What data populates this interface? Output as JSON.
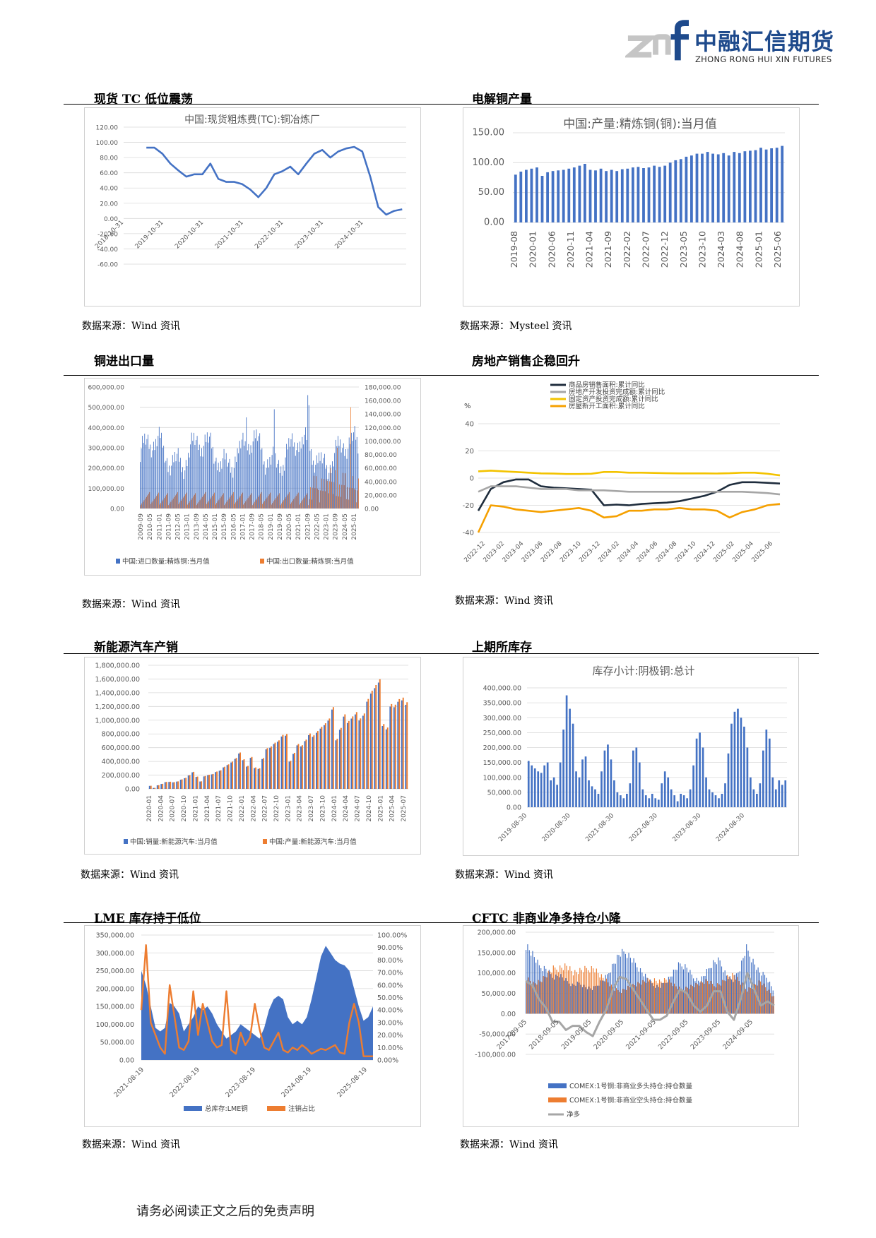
{
  "header": {
    "logo_mark": "znf",
    "brand_cn": "中融汇信期货",
    "brand_en": "ZHONG RONG HUI XIN FUTURES"
  },
  "sections": [
    {
      "title": "现货 TC 低位震荡",
      "source": "数据来源：Wind 资讯"
    },
    {
      "title": "电解铜产量",
      "source": "数据来源：Mysteel 资讯"
    },
    {
      "title": "铜进出口量",
      "source": "数据来源：Wind 资讯"
    },
    {
      "title": "房地产销售企稳回升",
      "source": "数据来源：Wind 资讯"
    },
    {
      "title": "新能源汽车产销",
      "source": "数据来源：Wind 资讯"
    },
    {
      "title": "上期所库存",
      "source": "数据来源：Wind 资讯"
    },
    {
      "title": "LME 库存持于低位",
      "source": "数据来源：Wind 资讯"
    },
    {
      "title": "CFTC 非商业净多持仓小降",
      "source": "数据来源：Wind 资讯"
    }
  ],
  "footer": "请务必阅读正文之后的免责声明",
  "chart_data": [
    {
      "id": "tc",
      "type": "line",
      "title": "中国:现货粗炼费(TC):铜冶炼厂",
      "color": "#4472c4",
      "x_ticks": [
        "2018-10-31",
        "2019-10-31",
        "2020-10-31",
        "2021-10-31",
        "2022-10-31",
        "2023-10-31",
        "2024-10-31"
      ],
      "y_ticks": [
        "120.00",
        "100.00",
        "80.00",
        "60.00",
        "40.00",
        "20.00",
        "0.00",
        "-20.00",
        "-40.00",
        "-60.00"
      ],
      "ylim": [
        -60,
        120
      ],
      "x": [
        2019.4,
        2019.6,
        2019.8,
        2020.0,
        2020.2,
        2020.4,
        2020.6,
        2020.8,
        2021.0,
        2021.2,
        2021.4,
        2021.6,
        2021.8,
        2022.0,
        2022.2,
        2022.4,
        2022.6,
        2022.8,
        2023.0,
        2023.2,
        2023.4,
        2023.6,
        2023.8,
        2024.0,
        2024.2,
        2024.4,
        2024.6,
        2024.8,
        2025.0,
        2025.2,
        2025.4,
        2025.6,
        2025.8
      ],
      "y": [
        93,
        93,
        85,
        72,
        63,
        55,
        58,
        58,
        72,
        52,
        48,
        48,
        45,
        38,
        28,
        40,
        58,
        62,
        68,
        58,
        72,
        85,
        90,
        80,
        88,
        92,
        94,
        88,
        55,
        15,
        5,
        10,
        12
      ]
    },
    {
      "id": "refined_output",
      "type": "bar",
      "title": "中国:产量:精炼铜(铜):当月值",
      "color": "#4472c4",
      "x_ticks": [
        "2019-08",
        "2020-01",
        "2020-06",
        "2020-11",
        "2021-04",
        "2021-09",
        "2022-02",
        "2022-07",
        "2022-12",
        "2023-05",
        "2023-10",
        "2024-03",
        "2024-08",
        "2025-01",
        "2025-06"
      ],
      "y_ticks": [
        "150.00",
        "100.00",
        "50.00",
        "0.00"
      ],
      "ylim": [
        0,
        150
      ],
      "values": [
        80,
        85,
        88,
        90,
        92,
        78,
        84,
        86,
        87,
        88,
        90,
        92,
        95,
        98,
        88,
        87,
        90,
        86,
        88,
        86,
        89,
        90,
        92,
        93,
        91,
        92,
        95,
        93,
        95,
        100,
        104,
        106,
        110,
        112,
        115,
        115,
        118,
        115,
        114,
        116,
        112,
        118,
        116,
        119,
        120,
        121,
        125,
        122,
        124,
        125,
        128
      ]
    },
    {
      "id": "trade",
      "type": "bar",
      "x_ticks": [
        "2009-09",
        "2010-05",
        "2011-01",
        "2011-09",
        "2012-05",
        "2013-01",
        "2013-09",
        "2014-05",
        "2015-01",
        "2015-09",
        "2016-05",
        "2017-01",
        "2017-09",
        "2018-05",
        "2019-01",
        "2019-09",
        "2020-05",
        "2021-01",
        "2021-09",
        "2022-05",
        "2023-01",
        "2023-09",
        "2024-05",
        "2025-01"
      ],
      "y_ticks_left": [
        "600,000.00",
        "500,000.00",
        "400,000.00",
        "300,000.00",
        "200,000.00",
        "100,000.00",
        "0.00"
      ],
      "y_ticks_right": [
        "180,000.00",
        "160,000.00",
        "140,000.00",
        "120,000.00",
        "100,000.00",
        "80,000.00",
        "60,000.00",
        "40,000.00",
        "20,000.00",
        "0.00"
      ],
      "series": [
        {
          "name": "中国:进口数量:精炼铜:当月值",
          "color": "#4472c4",
          "ylim": [
            0,
            600000
          ]
        },
        {
          "name": "中国:出口数量:精炼铜:当月值",
          "color": "#ed7d31",
          "ylim": [
            0,
            180000
          ]
        }
      ]
    },
    {
      "id": "property",
      "type": "line",
      "unit": "%",
      "x_ticks": [
        "2022-12",
        "2023-02",
        "2023-04",
        "2023-06",
        "2023-08",
        "2023-10",
        "2023-12",
        "2024-02",
        "2024-04",
        "2024-06",
        "2024-08",
        "2024-10",
        "2024-12",
        "2025-02",
        "2025-04",
        "2025-06"
      ],
      "y_ticks": [
        "40",
        "20",
        "0",
        "-20",
        "-40"
      ],
      "ylim": [
        -40,
        40
      ],
      "series": [
        {
          "name": "商品房销售面积:累计同比",
          "color": "#1f2d3d",
          "values": [
            -24,
            -8,
            -3,
            -1,
            -1,
            -6,
            -7,
            -7.5,
            -8,
            -8.5,
            -20,
            -19.5,
            -20,
            -19,
            -18.5,
            -18,
            -17,
            -15,
            -13,
            -10,
            -5,
            -3,
            -3,
            -3.5,
            -4
          ]
        },
        {
          "name": "房地产开发投资完成额:累计同比",
          "color": "#a6a6a6",
          "values": [
            -10,
            -6,
            -6,
            -6,
            -7,
            -8,
            -8,
            -8,
            -9,
            -9,
            -9,
            -9.5,
            -10,
            -10,
            -10,
            -10,
            -10,
            -10,
            -10,
            -10,
            -10,
            -10,
            -10.5,
            -11,
            -12
          ]
        },
        {
          "name": "固定资产投资完成额:累计同比",
          "color": "#f3c300",
          "values": [
            5,
            5.5,
            5,
            4.5,
            4,
            3.5,
            3.3,
            3,
            3,
            3.2,
            4.5,
            4.5,
            4,
            4,
            3.8,
            3.6,
            3.5,
            3.5,
            3.5,
            3.4,
            3.6,
            4,
            4,
            3.2,
            2
          ]
        },
        {
          "name": "房屋新开工面积:累计同比",
          "color": "#f5a000",
          "values": [
            -40,
            -20,
            -21,
            -23,
            -24,
            -25,
            -24,
            -23,
            -22,
            -24,
            -29,
            -28,
            -24,
            -24,
            -23,
            -23,
            -22,
            -23,
            -23,
            -24,
            -29,
            -25,
            -23,
            -20,
            -19
          ]
        }
      ]
    },
    {
      "id": "nev",
      "type": "bar",
      "x_ticks": [
        "2020-01",
        "2020-04",
        "2020-07",
        "2020-10",
        "2021-01",
        "2021-04",
        "2021-07",
        "2021-10",
        "2022-01",
        "2022-04",
        "2022-07",
        "2022-10",
        "2023-01",
        "2023-04",
        "2023-07",
        "2023-10",
        "2024-01",
        "2024-04",
        "2024-07",
        "2024-10",
        "2025-01",
        "2025-04",
        "2025-07"
      ],
      "y_ticks": [
        "1,800,000.00",
        "1,600,000.00",
        "1,400,000.00",
        "1,200,000.00",
        "1,000,000.00",
        "800,000.00",
        "600,000.00",
        "400,000.00",
        "200,000.00",
        "0.00"
      ],
      "ylim": [
        0,
        1800000
      ],
      "series": [
        {
          "name": "中国:销量:新能源汽车:当月值",
          "color": "#4472c4"
        },
        {
          "name": "中国:产量:新能源汽车:当月值",
          "color": "#ed7d31"
        }
      ],
      "values": [
        45000,
        14000,
        53000,
        73000,
        101000,
        104000,
        98000,
        109000,
        138000,
        160000,
        200000,
        248000,
        179000,
        110000,
        187000,
        206000,
        217000,
        252000,
        271000,
        322000,
        357000,
        397000,
        450000,
        530000,
        431000,
        334000,
        465000,
        312000,
        299000,
        447000,
        593000,
        617000,
        673000,
        707000,
        786000,
        798000,
        408000,
        525000,
        653000,
        636000,
        717000,
        806000,
        780000,
        842000,
        904000,
        956000,
        1024000,
        1191000,
        729000,
        888000,
        1085000,
        988000,
        1055000,
        1118000,
        1026000,
        1097000,
        1309000,
        1430000,
        1512000,
        1596000,
        944000,
        893000,
        1235000,
        1226000,
        1307000,
        1329000,
        1262000
      ]
    },
    {
      "id": "shfe",
      "type": "bar",
      "title": "库存小计:阴极铜:总计",
      "color": "#4472c4",
      "x_ticks": [
        "2019-08-30",
        "2020-08-30",
        "2021-08-30",
        "2022-08-30",
        "2023-08-30",
        "2024-08-30"
      ],
      "y_ticks": [
        "400,000.00",
        "350,000.00",
        "300,000.00",
        "250,000.00",
        "200,000.00",
        "150,000.00",
        "100,000.00",
        "50,000.00",
        "0.00"
      ],
      "ylim": [
        0,
        400000
      ],
      "values": [
        155000,
        140000,
        130000,
        120000,
        115000,
        140000,
        150000,
        90000,
        100000,
        75000,
        150000,
        260000,
        375000,
        330000,
        280000,
        120000,
        100000,
        160000,
        170000,
        90000,
        70000,
        60000,
        45000,
        120000,
        190000,
        210000,
        160000,
        90000,
        50000,
        40000,
        30000,
        45000,
        80000,
        190000,
        200000,
        150000,
        60000,
        40000,
        30000,
        45000,
        30000,
        25000,
        80000,
        120000,
        100000,
        60000,
        40000,
        20000,
        45000,
        40000,
        30000,
        60000,
        140000,
        230000,
        250000,
        200000,
        100000,
        60000,
        50000,
        40000,
        30000,
        45000,
        80000,
        180000,
        280000,
        320000,
        330000,
        300000,
        270000,
        200000,
        100000,
        60000,
        45000,
        80000,
        190000,
        260000,
        230000,
        100000,
        60000,
        90000,
        75000,
        90000
      ]
    },
    {
      "id": "lme",
      "type": "area",
      "x_ticks": [
        "2021-08-19",
        "2022-08-19",
        "2023-08-19",
        "2024-08-19",
        "2025-08-19"
      ],
      "y_ticks_left": [
        "350,000.00",
        "300,000.00",
        "250,000.00",
        "200,000.00",
        "150,000.00",
        "100,000.00",
        "50,000.00",
        "0.00"
      ],
      "y_ticks_right": [
        "100.00%",
        "90.00%",
        "80.00%",
        "70.00%",
        "60.00%",
        "50.00%",
        "40.00%",
        "30.00%",
        "20.00%",
        "10.00%",
        "0.00%"
      ],
      "series": [
        {
          "name": "总库存:LME铜",
          "color": "#4472c4",
          "ylim": [
            0,
            350000
          ],
          "values": [
            250000,
            210000,
            150000,
            90000,
            80000,
            90000,
            160000,
            150000,
            130000,
            80000,
            100000,
            120000,
            150000,
            140000,
            150000,
            130000,
            100000,
            80000,
            60000,
            70000,
            80000,
            100000,
            90000,
            80000,
            70000,
            60000,
            90000,
            140000,
            170000,
            180000,
            170000,
            120000,
            100000,
            110000,
            100000,
            120000,
            170000,
            230000,
            290000,
            320000,
            300000,
            280000,
            270000,
            265000,
            250000,
            200000,
            150000,
            110000,
            120000,
            150000
          ]
        },
        {
          "name": "注销占比",
          "color": "#ed7d31",
          "ylim": [
            0,
            100
          ],
          "values": [
            40,
            92,
            30,
            20,
            10,
            5,
            60,
            35,
            10,
            8,
            15,
            55,
            20,
            45,
            30,
            15,
            10,
            12,
            55,
            8,
            5,
            22,
            12,
            18,
            45,
            25,
            10,
            8,
            15,
            22,
            8,
            6,
            10,
            8,
            12,
            9,
            5,
            7,
            9,
            8,
            10,
            12,
            6,
            5,
            30,
            45,
            30,
            3,
            3,
            3
          ]
        }
      ]
    },
    {
      "id": "cftc",
      "type": "line",
      "x_ticks": [
        "2017-09-05",
        "2018-09-05",
        "2019-09-05",
        "2020-09-05",
        "2021-09-05",
        "2022-09-05",
        "2023-09-05",
        "2024-09-05"
      ],
      "y_ticks": [
        "200,000.00",
        "150,000.00",
        "100,000.00",
        "50,000.00",
        "0.00",
        "-50,000.00",
        "-100,000.00"
      ],
      "ylim": [
        -100000,
        200000
      ],
      "series": [
        {
          "name": "COMEX:1号铜:非商业多头持仓:持仓数量",
          "color": "#4472c4",
          "values": [
            170000,
            145000,
            115000,
            110000,
            90000,
            95000,
            80000,
            70000,
            75000,
            65000,
            60000,
            75000,
            90000,
            120000,
            145000,
            150000,
            130000,
            110000,
            90000,
            70000,
            65000,
            80000,
            100000,
            120000,
            115000,
            90000,
            80000,
            100000,
            125000,
            130000,
            95000,
            80000,
            110000,
            160000,
            130000,
            100000,
            90000,
            60000
          ]
        },
        {
          "name": "COMEX:1号铜:非商业空头持仓:持仓数量",
          "color": "#ed7d31",
          "values": [
            90000,
            75000,
            80000,
            95000,
            110000,
            115000,
            120000,
            100000,
            105000,
            110000,
            115000,
            95000,
            80000,
            60000,
            55000,
            65000,
            70000,
            75000,
            80000,
            85000,
            80000,
            85000,
            70000,
            60000,
            65000,
            70000,
            75000,
            80000,
            70000,
            75000,
            90000,
            95000,
            75000,
            60000,
            70000,
            80000,
            60000,
            40000
          ]
        },
        {
          "name": "净多",
          "color": "#a6a6a6",
          "values": [
            80000,
            70000,
            35000,
            15000,
            -20000,
            -20000,
            -40000,
            -30000,
            -30000,
            -45000,
            -55000,
            -20000,
            10000,
            60000,
            90000,
            85000,
            60000,
            35000,
            10000,
            -15000,
            -15000,
            -5000,
            30000,
            60000,
            50000,
            20000,
            5000,
            20000,
            55000,
            55000,
            5000,
            -15000,
            35000,
            100000,
            60000,
            20000,
            30000,
            20000
          ]
        }
      ]
    }
  ]
}
